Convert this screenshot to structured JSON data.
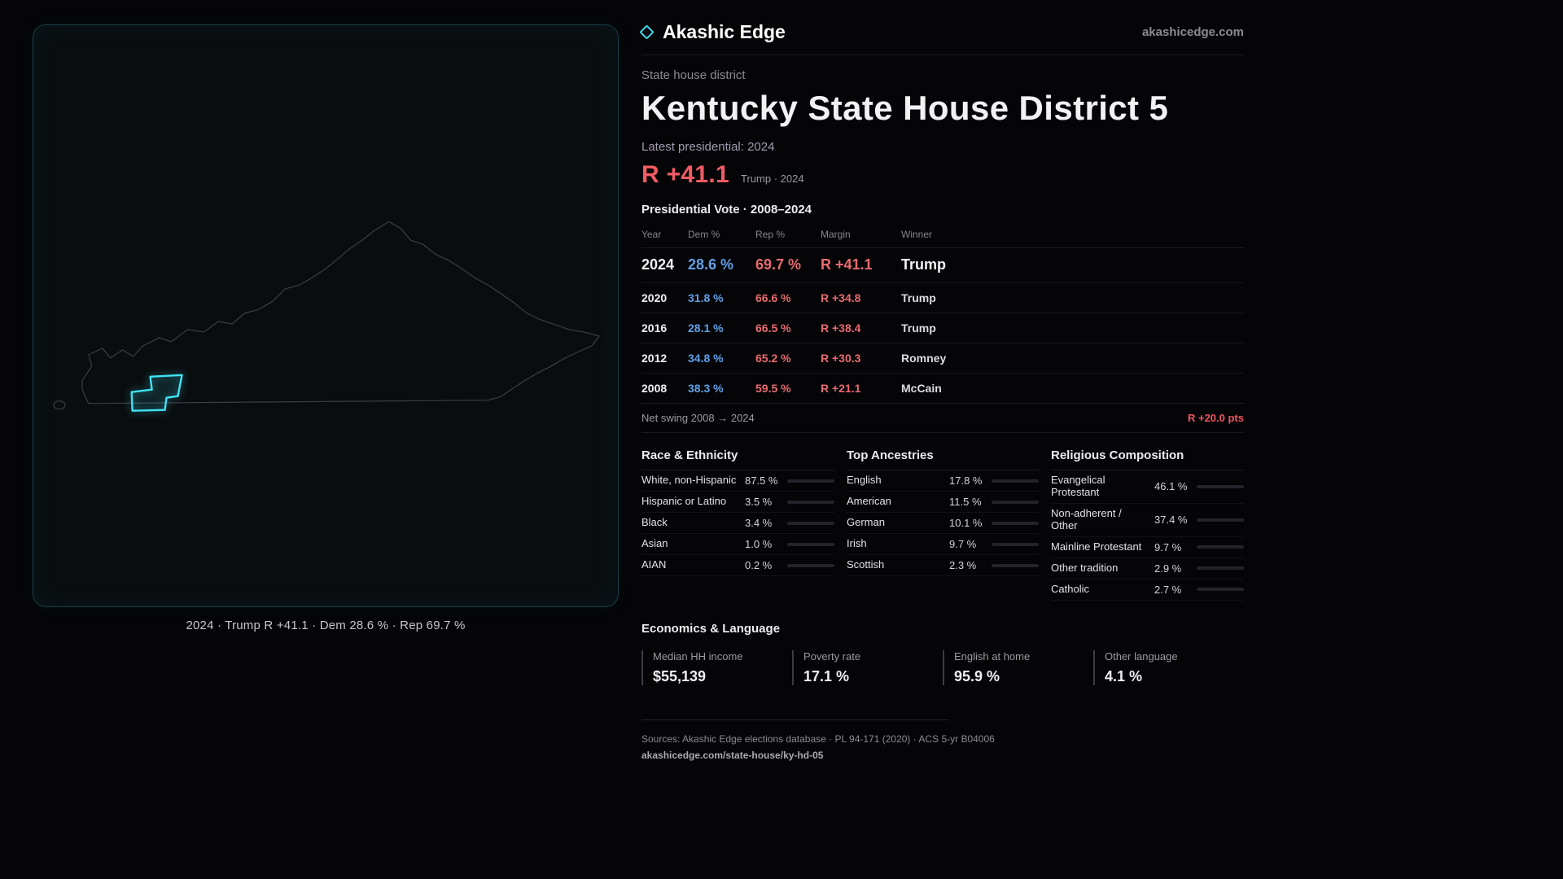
{
  "header": {
    "brand": "Akashic Edge",
    "domain": "akashicedge.com"
  },
  "district": {
    "kicker": "State house district",
    "title": "Kentucky State House District 5",
    "latest_label": "Latest presidential: 2024",
    "margin_big": "R +41.1",
    "margin_context": "Trump · 2024"
  },
  "map": {
    "caption": "2024 · Trump R +41.1 · Dem 28.6 % · Rep 69.7 %"
  },
  "vote_table": {
    "title": "Presidential Vote · 2008–2024",
    "columns": {
      "year": "Year",
      "dem": "Dem %",
      "rep": "Rep %",
      "margin": "Margin",
      "winner": "Winner"
    },
    "rows": [
      {
        "year": "2024",
        "dem": "28.6 %",
        "rep": "69.7 %",
        "margin": "R +41.1",
        "winner": "Trump"
      },
      {
        "year": "2020",
        "dem": "31.8 %",
        "rep": "66.6 %",
        "margin": "R +34.8",
        "winner": "Trump"
      },
      {
        "year": "2016",
        "dem": "28.1 %",
        "rep": "66.5 %",
        "margin": "R +38.4",
        "winner": "Trump"
      },
      {
        "year": "2012",
        "dem": "34.8 %",
        "rep": "65.2 %",
        "margin": "R +30.3",
        "winner": "Romney"
      },
      {
        "year": "2008",
        "dem": "38.3 %",
        "rep": "59.5 %",
        "margin": "R +21.1",
        "winner": "McCain"
      }
    ],
    "net_swing_label": "Net swing 2008 → 2024",
    "net_swing_value": "R +20.0 pts"
  },
  "demographics": [
    {
      "title": "Race & Ethnicity",
      "rows": [
        {
          "label": "White, non-Hispanic",
          "value": "87.5 %",
          "pct": 87.5,
          "color": "#a7adcb"
        },
        {
          "label": "Hispanic or Latino",
          "value": "3.5 %",
          "pct": 3.5,
          "color": "#d9a13e"
        },
        {
          "label": "Black",
          "value": "3.4 %",
          "pct": 3.4,
          "color": "#aab0c2"
        },
        {
          "label": "Asian",
          "value": "1.0 %",
          "pct": 1.0,
          "color": "#79b890"
        },
        {
          "label": "AIAN",
          "value": "0.2 %",
          "pct": 0.2,
          "color": "#aab0c2"
        }
      ]
    },
    {
      "title": "Top Ancestries",
      "rows": [
        {
          "label": "English",
          "value": "17.8 %",
          "pct": 17.8,
          "color": "#8b93b8"
        },
        {
          "label": "American",
          "value": "11.5 %",
          "pct": 11.5,
          "color": "#8b93b8"
        },
        {
          "label": "German",
          "value": "10.1 %",
          "pct": 10.1,
          "color": "#8b93b8"
        },
        {
          "label": "Irish",
          "value": "9.7 %",
          "pct": 9.7,
          "color": "#8b93b8"
        },
        {
          "label": "Scottish",
          "value": "2.3 %",
          "pct": 2.3,
          "color": "#8b93b8"
        }
      ]
    },
    {
      "title": "Religious Composition",
      "rows": [
        {
          "label": "Evangelical Protestant",
          "value": "46.1 %",
          "pct": 46.1,
          "color": "#e76a76"
        },
        {
          "label": "Non-adherent / Other",
          "value": "37.4 %",
          "pct": 37.4,
          "color": "#9097a8"
        },
        {
          "label": "Mainline Protestant",
          "value": "9.7 %",
          "pct": 9.7,
          "color": "#5c8fe0"
        },
        {
          "label": "Other tradition",
          "value": "2.9 %",
          "pct": 2.9,
          "color": "#9097a8"
        },
        {
          "label": "Catholic",
          "value": "2.7 %",
          "pct": 2.7,
          "color": "#d9c558"
        }
      ]
    }
  ],
  "economics": {
    "title": "Economics & Language",
    "stats": [
      {
        "label": "Median HH income",
        "value": "$55,139"
      },
      {
        "label": "Poverty rate",
        "value": "17.1 %"
      },
      {
        "label": "English at home",
        "value": "95.9 %"
      },
      {
        "label": "Other language",
        "value": "4.1 %"
      }
    ]
  },
  "footer": {
    "sources": "Sources: Akashic Edge elections database · PL 94-171 (2020) · ACS 5-yr B04006",
    "permalink": "akashicedge.com/state-house/ky-hd-05"
  },
  "colors": {
    "accent_cyan": "#3fe3f5",
    "dem_blue": "#62a0e6",
    "rep_red": "#e96b70",
    "margin_red": "#f25b64"
  }
}
